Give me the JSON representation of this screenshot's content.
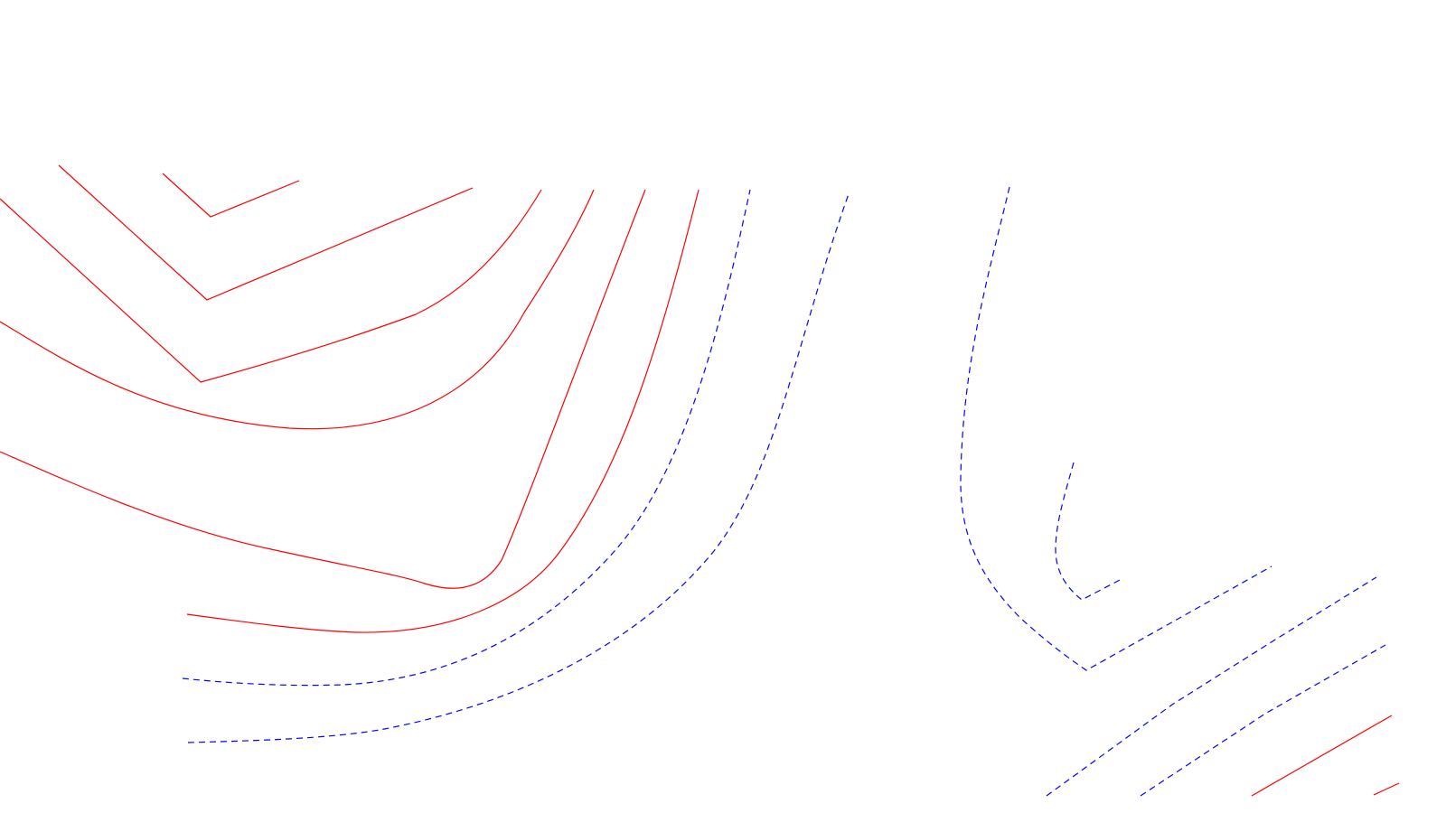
{
  "colors": {
    "background": "#ffffff",
    "solid_contour": "#ff0000",
    "dashed_contour": "#0000ff"
  },
  "line_styles": {
    "red": "solid",
    "blue": "dashed"
  },
  "contours": [
    {
      "id": "red-1",
      "color": "red",
      "style": "solid"
    },
    {
      "id": "red-2",
      "color": "red",
      "style": "solid"
    },
    {
      "id": "red-3",
      "color": "red",
      "style": "solid"
    },
    {
      "id": "red-4",
      "color": "red",
      "style": "solid"
    },
    {
      "id": "red-5",
      "color": "red",
      "style": "solid"
    },
    {
      "id": "red-6",
      "color": "red",
      "style": "solid"
    },
    {
      "id": "red-7",
      "color": "red",
      "style": "solid"
    },
    {
      "id": "red-8",
      "color": "red",
      "style": "solid"
    },
    {
      "id": "blue-1",
      "color": "blue",
      "style": "dashed"
    },
    {
      "id": "blue-2",
      "color": "blue",
      "style": "dashed"
    },
    {
      "id": "blue-3",
      "color": "blue",
      "style": "dashed"
    },
    {
      "id": "blue-4",
      "color": "blue",
      "style": "dashed"
    },
    {
      "id": "blue-5",
      "color": "blue",
      "style": "dashed"
    },
    {
      "id": "blue-6",
      "color": "blue",
      "style": "dashed"
    }
  ]
}
